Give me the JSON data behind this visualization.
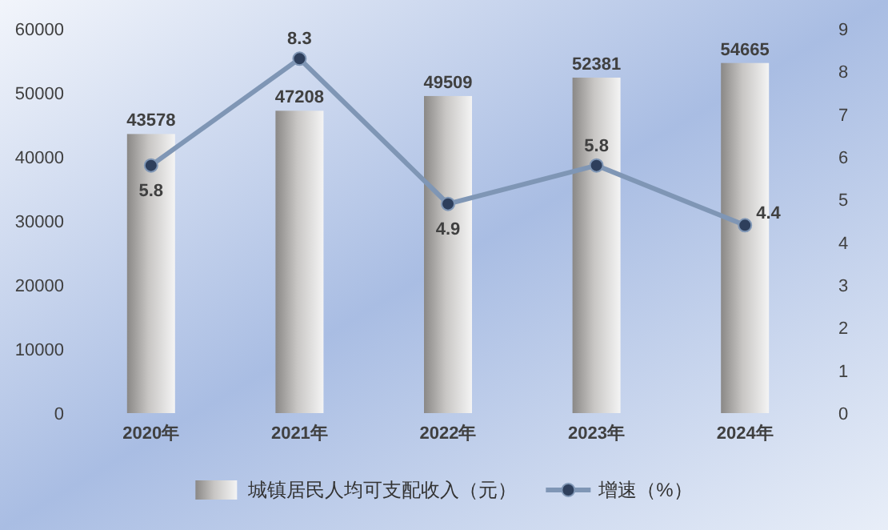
{
  "chart_data": {
    "type": "bar",
    "categories": [
      "2020年",
      "2021年",
      "2022年",
      "2023年",
      "2024年"
    ],
    "series": [
      {
        "name": "城镇居民人均可支配收入（元）",
        "color": "#c8c6c4",
        "values": [
          43578,
          47208,
          49509,
          52381,
          54665
        ]
      },
      {
        "name": "增速（%）",
        "type": "line",
        "axis": "y2",
        "color": "#7f96b5",
        "values": [
          5.8,
          8.3,
          4.9,
          5.8,
          4.4
        ]
      }
    ],
    "ylim": [
      0,
      60000
    ],
    "yticks": [
      0,
      10000,
      20000,
      30000,
      40000,
      50000,
      60000
    ],
    "y2lim": [
      0,
      9
    ],
    "y2ticks": [
      0,
      1,
      2,
      3,
      4,
      5,
      6,
      7,
      8,
      9
    ],
    "data_labels": true,
    "marker": "circle",
    "grid": false,
    "legend": "bottom"
  }
}
